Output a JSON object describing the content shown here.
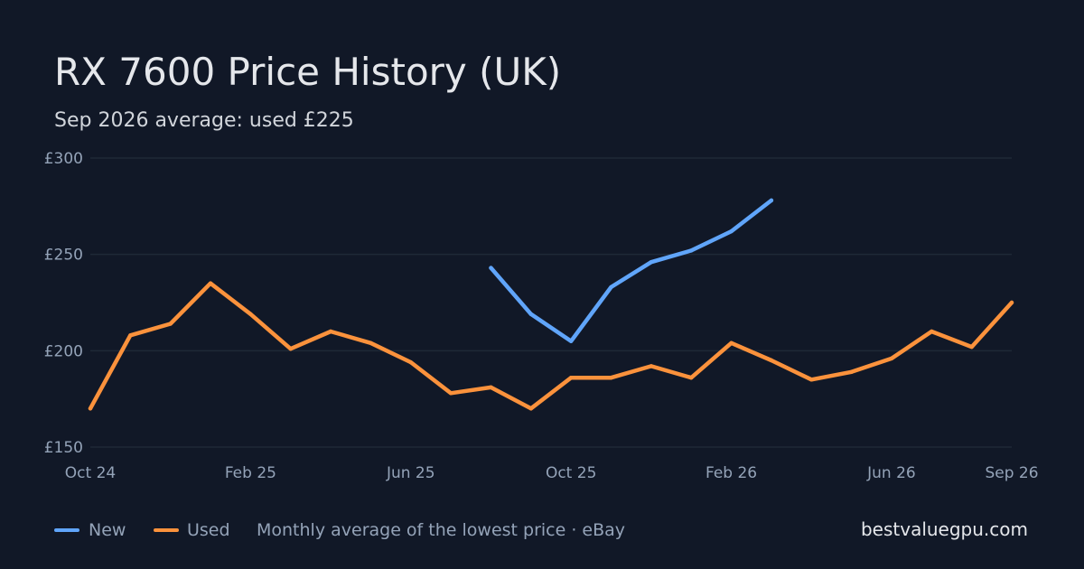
{
  "header": {
    "title": "RX 7600 Price History (UK)",
    "subtitle": "Sep 2026 average: used £225"
  },
  "legend": {
    "new_label": "New",
    "used_label": "Used",
    "note": "Monthly average of the lowest price · eBay"
  },
  "brand": "bestvaluegpu.com",
  "colors": {
    "background": "#111827",
    "grid": "#1f2937",
    "new": "#60a5fa",
    "used": "#fb923c"
  },
  "chart_data": {
    "type": "line",
    "title": "RX 7600 Price History (UK)",
    "subtitle": "Sep 2026 average: used £225",
    "x": [
      "2024-10",
      "2024-11",
      "2024-12",
      "2025-01",
      "2025-02",
      "2025-03",
      "2025-04",
      "2025-05",
      "2025-06",
      "2025-07",
      "2025-08",
      "2025-09",
      "2025-10",
      "2025-11",
      "2025-12",
      "2026-01",
      "2026-02",
      "2026-03",
      "2026-04",
      "2026-05",
      "2026-06",
      "2026-07",
      "2026-08",
      "2026-09"
    ],
    "series": [
      {
        "name": "New",
        "color": "#60a5fa",
        "values": [
          null,
          null,
          null,
          null,
          null,
          null,
          null,
          null,
          null,
          null,
          243,
          219,
          205,
          233,
          246,
          252,
          262,
          278,
          null,
          null,
          null,
          null,
          null,
          null
        ]
      },
      {
        "name": "Used",
        "color": "#fb923c",
        "values": [
          170,
          208,
          214,
          235,
          219,
          201,
          210,
          204,
          194,
          178,
          181,
          170,
          186,
          186,
          192,
          186,
          204,
          195,
          185,
          189,
          196,
          210,
          202,
          225
        ]
      }
    ],
    "x_ticks": [
      "Oct 24",
      "Feb 25",
      "Jun 25",
      "Oct 25",
      "Feb 26",
      "Jun 26",
      "Sep 26"
    ],
    "x_tick_dates": [
      "2024-10",
      "2025-02",
      "2025-06",
      "2025-10",
      "2026-02",
      "2026-06",
      "2026-09"
    ],
    "y_ticks": [
      "£150",
      "£200",
      "£250",
      "£300"
    ],
    "y_tick_values": [
      150,
      200,
      250,
      300
    ],
    "ylim": [
      150,
      300
    ],
    "xlabel": "",
    "ylabel": "",
    "grid": true,
    "legend_position": "bottom-left"
  }
}
